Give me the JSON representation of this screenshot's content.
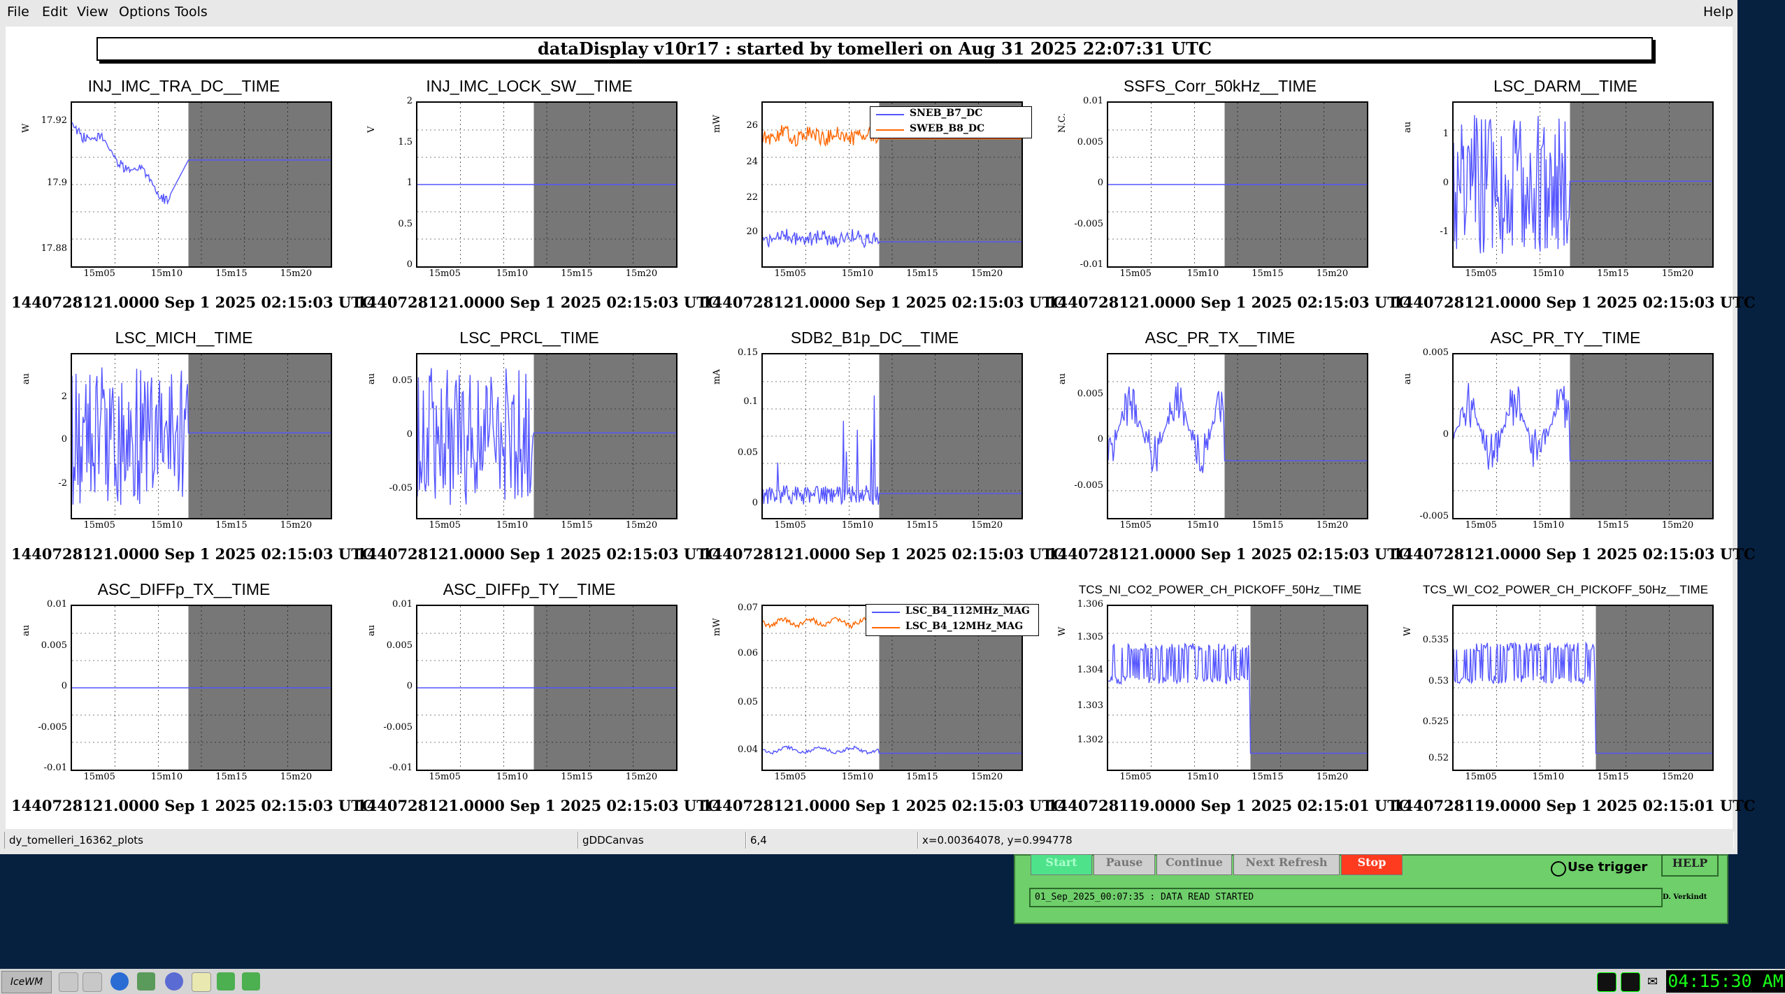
{
  "menu": {
    "file": "File",
    "edit": "Edit",
    "view": "View",
    "options": "Options",
    "tools": "Tools",
    "help": "Help"
  },
  "canvas_title": "dataDisplay v10r17 : started by tomelleri on Aug 31 2025 22:07:31 UTC",
  "panels": [
    {
      "title": "INJ_IMC_TRA_DC__TIME",
      "unit": "W",
      "yticks": [
        "17.92",
        "17.9",
        "17.88"
      ],
      "xticks": [
        "15m05",
        "15m10",
        "15m15",
        "15m20"
      ],
      "stamp": "1440728121.0000 Sep 1 2025 02:15:03 UTC"
    },
    {
      "title": "INJ_IMC_LOCK_SW__TIME",
      "unit": "V",
      "yticks": [
        "2",
        "1.5",
        "1",
        "0.5",
        "0"
      ],
      "xticks": [
        "15m05",
        "15m10",
        "15m15",
        "15m20"
      ],
      "stamp": "1440728121.0000 Sep 1 2025 02:15:03 UTC"
    },
    {
      "title": "",
      "unit": "mW",
      "yticks": [
        "26",
        "24",
        "22",
        "20"
      ],
      "xticks": [
        "15m05",
        "15m10",
        "15m15",
        "15m20"
      ],
      "stamp": "1440728121.0000 Sep 1 2025 02:15:03 UTC",
      "legend": [
        "SNEB_B7_DC",
        "SWEB_B8_DC"
      ]
    },
    {
      "title": "SSFS_Corr_50kHz__TIME",
      "unit": "N.C.",
      "yticks": [
        "0.01",
        "0.005",
        "0",
        "-0.005",
        "-0.01"
      ],
      "xticks": [
        "15m05",
        "15m10",
        "15m15",
        "15m20"
      ],
      "stamp": "1440728121.0000 Sep 1 2025 02:15:03 UTC"
    },
    {
      "title": "LSC_DARM__TIME",
      "unit": "au",
      "yticks": [
        "1",
        "0",
        "-1"
      ],
      "xticks": [
        "15m05",
        "15m10",
        "15m15",
        "15m20"
      ],
      "stamp": "1440728121.0000 Sep 1 2025 02:15:03 UTC"
    },
    {
      "title": "LSC_MICH__TIME",
      "unit": "au",
      "yticks": [
        "2",
        "0",
        "-2"
      ],
      "xticks": [
        "15m05",
        "15m10",
        "15m15",
        "15m20"
      ],
      "stamp": "1440728121.0000 Sep 1 2025 02:15:03 UTC"
    },
    {
      "title": "LSC_PRCL__TIME",
      "unit": "au",
      "yticks": [
        "0.05",
        "0",
        "-0.05"
      ],
      "xticks": [
        "15m05",
        "15m10",
        "15m15",
        "15m20"
      ],
      "stamp": "1440728121.0000 Sep 1 2025 02:15:03 UTC"
    },
    {
      "title": "SDB2_B1p_DC__TIME",
      "unit": "mA",
      "yticks": [
        "0.15",
        "0.1",
        "0.05",
        "0"
      ],
      "xticks": [
        "15m05",
        "15m10",
        "15m15",
        "15m20"
      ],
      "stamp": "1440728121.0000 Sep 1 2025 02:15:03 UTC"
    },
    {
      "title": "ASC_PR_TX__TIME",
      "unit": "au",
      "yticks": [
        "0.005",
        "0",
        "-0.005"
      ],
      "xticks": [
        "15m05",
        "15m10",
        "15m15",
        "15m20"
      ],
      "stamp": "1440728121.0000 Sep 1 2025 02:15:03 UTC"
    },
    {
      "title": "ASC_PR_TY__TIME",
      "unit": "au",
      "yticks": [
        "0.005",
        "0",
        "-0.005"
      ],
      "xticks": [
        "15m05",
        "15m10",
        "15m15",
        "15m20"
      ],
      "stamp": "1440728121.0000 Sep 1 2025 02:15:03 UTC"
    },
    {
      "title": "ASC_DIFFp_TX__TIME",
      "unit": "au",
      "yticks": [
        "0.01",
        "0.005",
        "0",
        "-0.005",
        "-0.01"
      ],
      "xticks": [
        "15m05",
        "15m10",
        "15m15",
        "15m20"
      ],
      "stamp": "1440728121.0000 Sep 1 2025 02:15:03 UTC"
    },
    {
      "title": "ASC_DIFFp_TY__TIME",
      "unit": "au",
      "yticks": [
        "0.01",
        "0.005",
        "0",
        "-0.005",
        "-0.01"
      ],
      "xticks": [
        "15m05",
        "15m10",
        "15m15",
        "15m20"
      ],
      "stamp": "1440728121.0000 Sep 1 2025 02:15:03 UTC"
    },
    {
      "title": "",
      "unit": "mW",
      "yticks": [
        "0.07",
        "0.06",
        "0.05",
        "0.04"
      ],
      "xticks": [
        "15m05",
        "15m10",
        "15m15",
        "15m20"
      ],
      "stamp": "1440728121.0000 Sep 1 2025 02:15:03 UTC",
      "legend": [
        "LSC_B4_112MHz_MAG",
        "LSC_B4_12MHz_MAG"
      ]
    },
    {
      "title": "TCS_NI_CO2_POWER_CH_PICKOFF_50Hz__TIME",
      "unit": "W",
      "yticks": [
        "1.306",
        "1.305",
        "1.304",
        "1.303",
        "1.302"
      ],
      "xticks": [
        "15m05",
        "15m10",
        "15m15",
        "15m20"
      ],
      "stamp": "1440728119.0000 Sep 1 2025 02:15:01 UTC"
    },
    {
      "title": "TCS_WI_CO2_POWER_CH_PICKOFF_50Hz__TIME",
      "unit": "W",
      "yticks": [
        "0.535",
        "0.53",
        "0.525",
        "0.52"
      ],
      "xticks": [
        "15m05",
        "15m10",
        "15m15",
        "15m20"
      ],
      "stamp": "1440728119.0000 Sep 1 2025 02:15:01 UTC"
    }
  ],
  "statusbar": {
    "name": "dy_tomelleri_16362_plots",
    "canvas": "gDDCanvas",
    "pos": "6,4",
    "coords": "x=0.00364078, y=0.994778"
  },
  "control": {
    "start": "Start",
    "pause": "Pause",
    "continue": "Continue",
    "next_refresh": "Next Refresh",
    "stop": "Stop",
    "use_trigger": "Use trigger",
    "help": "HELP",
    "message": "01_Sep_2025_00:07:35 : DATA READ STARTED",
    "credit": "D. Verkindt"
  },
  "taskbar": {
    "clock": "04:15:30 AM"
  },
  "colors": {
    "series_blue": "#5555ff",
    "series_orange": "#ff6600",
    "future_shade": "#777777",
    "ctrl_green": "#6fcf6b",
    "stop_red": "#ff3b1f"
  }
}
